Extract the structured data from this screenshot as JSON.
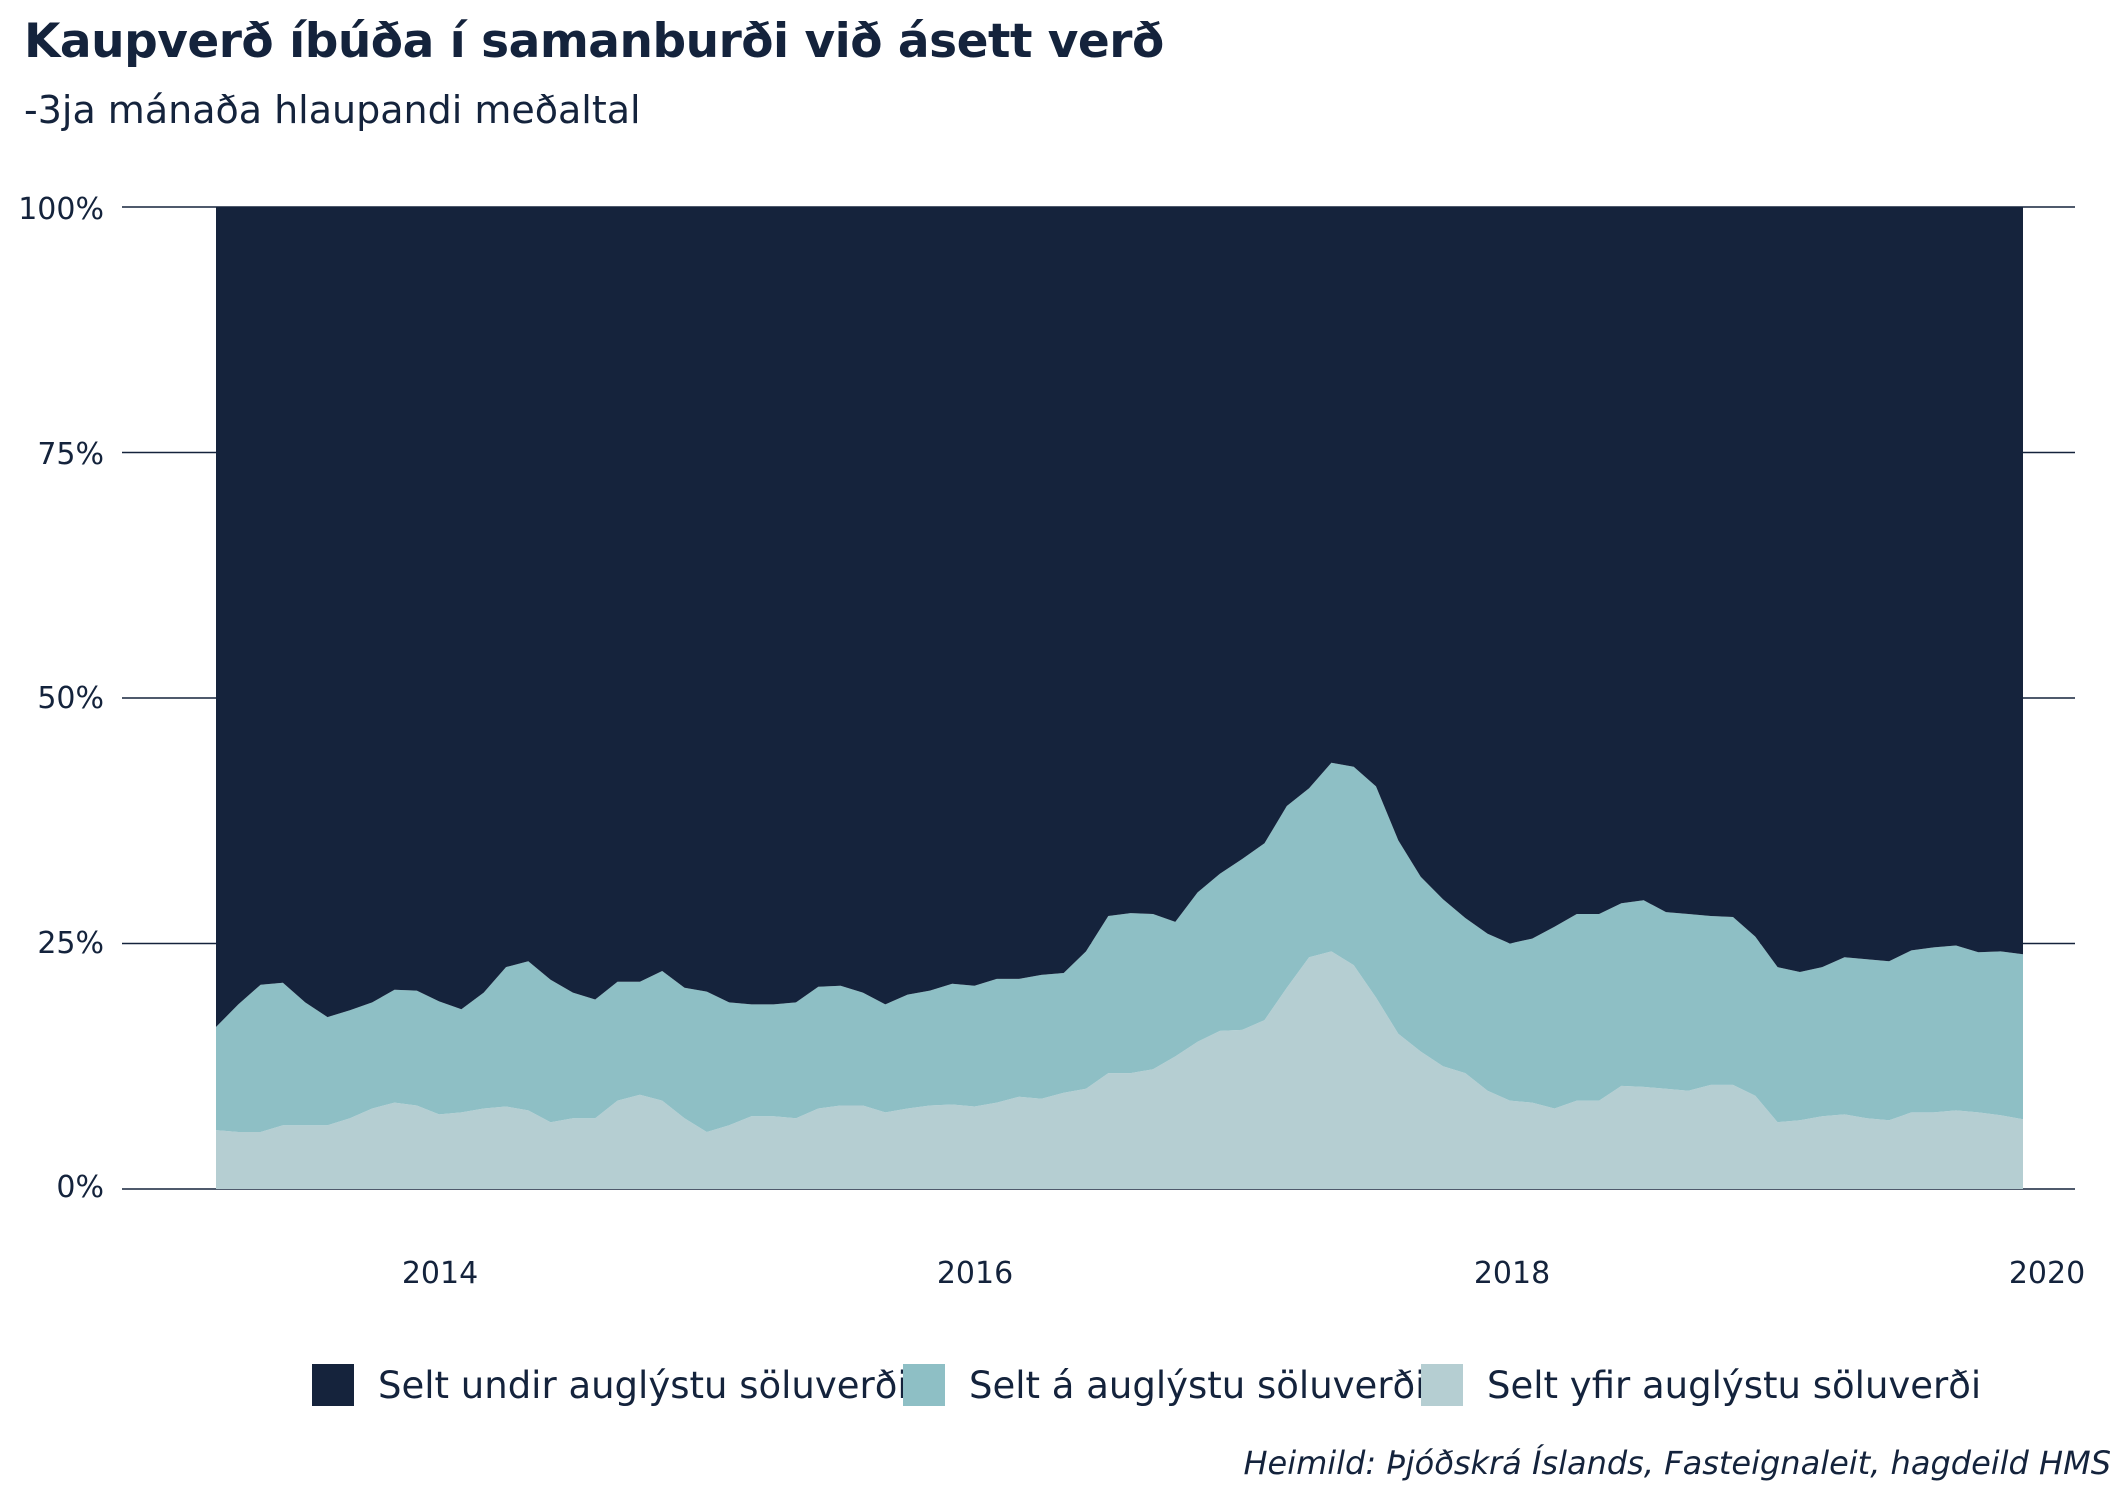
{
  "title": "Kaupverð íbúða í samanburði við ásett verð",
  "subtitle": "-3ja mánaða hlaupandi meðaltal",
  "source": "Heimild: Þjóðskrá Íslands, Fasteignaleit, hagdeild HMS",
  "legend": [
    {
      "label": "Selt undir auglýstu söluverði",
      "color": "#15233c"
    },
    {
      "label": "Selt á auglýstu söluverði",
      "color": "#8ebfc5"
    },
    {
      "label": "Selt yfir auglýstu söluverði",
      "color": "#b5ced2"
    }
  ],
  "chart_data": {
    "type": "area",
    "stacked": true,
    "normalized": true,
    "x_start": "2013-03",
    "x_end": "2019-12",
    "x_step": "month",
    "xticks": [
      "2014",
      "2016",
      "2018",
      "2020"
    ],
    "yticks": [
      "0%",
      "25%",
      "50%",
      "75%",
      "100%"
    ],
    "ylim": [
      0,
      100
    ],
    "grid": "horizontal",
    "legend_position": "bottom",
    "series": [
      {
        "name": "Selt yfir auglýstu söluverði",
        "color": "#b5ced2",
        "values": [
          6,
          5.8,
          5.8,
          6.5,
          6.5,
          6.5,
          7.2,
          8.2,
          8.8,
          8.5,
          7.6,
          7.8,
          8.2,
          8.4,
          8,
          6.8,
          7.2,
          7.2,
          9,
          9.6,
          9,
          7.2,
          5.8,
          6.5,
          7.4,
          7.4,
          7.2,
          8.2,
          8.5,
          8.5,
          7.8,
          8.2,
          8.5,
          8.6,
          8.4,
          8.8,
          9.4,
          9.2,
          9.8,
          10.2,
          11.8,
          11.8,
          12.2,
          13.5,
          15,
          16.1,
          16.2,
          17.2,
          20.5,
          23.6,
          24.2,
          22.8,
          19.5,
          15.8,
          14,
          12.5,
          11.8,
          10,
          9,
          8.8,
          8.2,
          9,
          9,
          10.5,
          10.4,
          10.2,
          10,
          10.6,
          10.6,
          9.5,
          6.8,
          7,
          7.4,
          7.6,
          7.2,
          7,
          7.8,
          7.8,
          8,
          7.8,
          7.5,
          7.1
        ]
      },
      {
        "name": "Selt á auglýstu söluverði",
        "color": "#8ebfc5",
        "values": [
          10.5,
          13,
          15,
          14.5,
          12.5,
          11,
          11,
          10.8,
          11.5,
          11.7,
          11.5,
          10.5,
          11.8,
          14.2,
          15.2,
          14.5,
          12.8,
          12.1,
          12.1,
          11.5,
          13.2,
          13.3,
          14.3,
          12.5,
          11.4,
          11.4,
          11.8,
          12.4,
          12.2,
          11.5,
          11,
          11.6,
          11.7,
          12.3,
          12.3,
          12.6,
          12,
          12.6,
          12.2,
          14,
          16,
          16.3,
          15.8,
          13.7,
          15.2,
          16,
          17.4,
          18,
          18.5,
          17.2,
          19.2,
          20.2,
          21.5,
          19.7,
          17.8,
          17,
          15.8,
          16,
          16,
          16.7,
          18.5,
          19,
          19,
          18.6,
          19,
          18,
          18,
          17.2,
          17.1,
          16.2,
          15.8,
          15.1,
          15.2,
          16,
          16.2,
          16.2,
          16.5,
          16.8,
          16.8,
          16.3,
          16.7,
          16.8
        ]
      },
      {
        "name": "Selt undir auglýstu söluverði",
        "color": "#15233c",
        "values": [
          83.5,
          81.2,
          79.2,
          79,
          81,
          82.5,
          81.8,
          81,
          79.7,
          79.8,
          80.9,
          81.7,
          80,
          77.4,
          76.8,
          78.7,
          80,
          80.7,
          78.9,
          78.9,
          77.8,
          79.5,
          79.9,
          81,
          81.2,
          81.2,
          81,
          79.4,
          79.3,
          80,
          81.2,
          80.2,
          79.8,
          79.1,
          79.3,
          78.6,
          78.6,
          78.2,
          78,
          75.8,
          72.2,
          71.9,
          72,
          72.8,
          69.8,
          67.9,
          66.4,
          64.8,
          61,
          59.2,
          56.6,
          57,
          59,
          64.5,
          68.2,
          70.5,
          72.4,
          74,
          75,
          74.5,
          73.3,
          72,
          72,
          70.9,
          70.6,
          71.8,
          72,
          72.2,
          72.3,
          74.3,
          77.4,
          77.9,
          77.4,
          76.4,
          76.6,
          76.8,
          75.7,
          75.4,
          75.2,
          75.9,
          75.8,
          76.1
        ]
      }
    ]
  }
}
